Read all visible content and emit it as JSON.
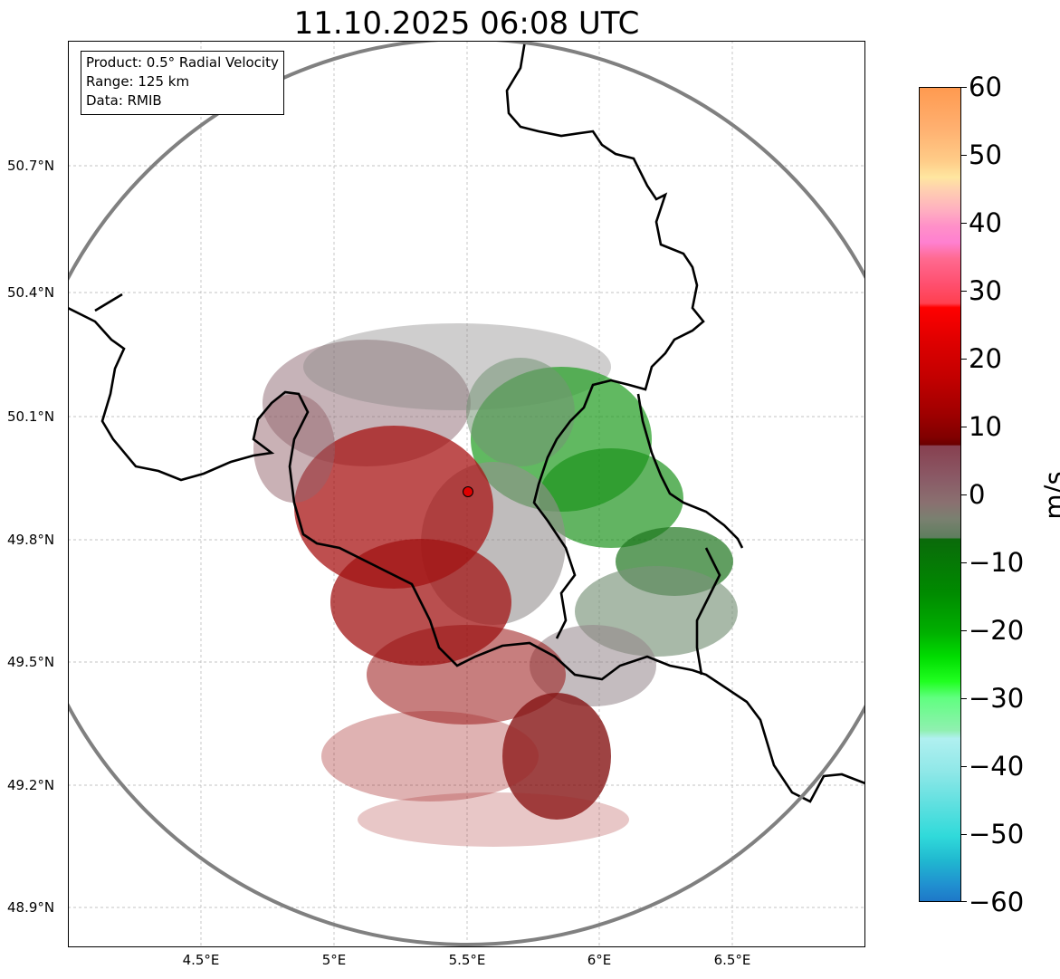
{
  "title": "11.10.2025 06:08 UTC",
  "info": {
    "line1": "Product: 0.5° Radial Velocity",
    "line2": "Range: 125 km",
    "line3": "Data: RMIB"
  },
  "lat_labels": [
    "50.7°N",
    "50.4°N",
    "50.1°N",
    "49.8°N",
    "49.5°N",
    "49.2°N",
    "48.9°N"
  ],
  "lon_labels": [
    "4.5°E",
    "5°E",
    "5.5°E",
    "6°E",
    "6.5°E"
  ],
  "colorbar": {
    "unit": "m/s",
    "ticks": [
      "60",
      "50",
      "40",
      "30",
      "20",
      "10",
      "0",
      "−10",
      "−20",
      "−30",
      "−40",
      "−50",
      "−60"
    ],
    "min": -60,
    "max": 60
  },
  "colors": {
    "range_ring": "#808080",
    "borders": "#000000",
    "gridlines": "#b0b0b0",
    "radar_marker": "#e00000"
  }
}
